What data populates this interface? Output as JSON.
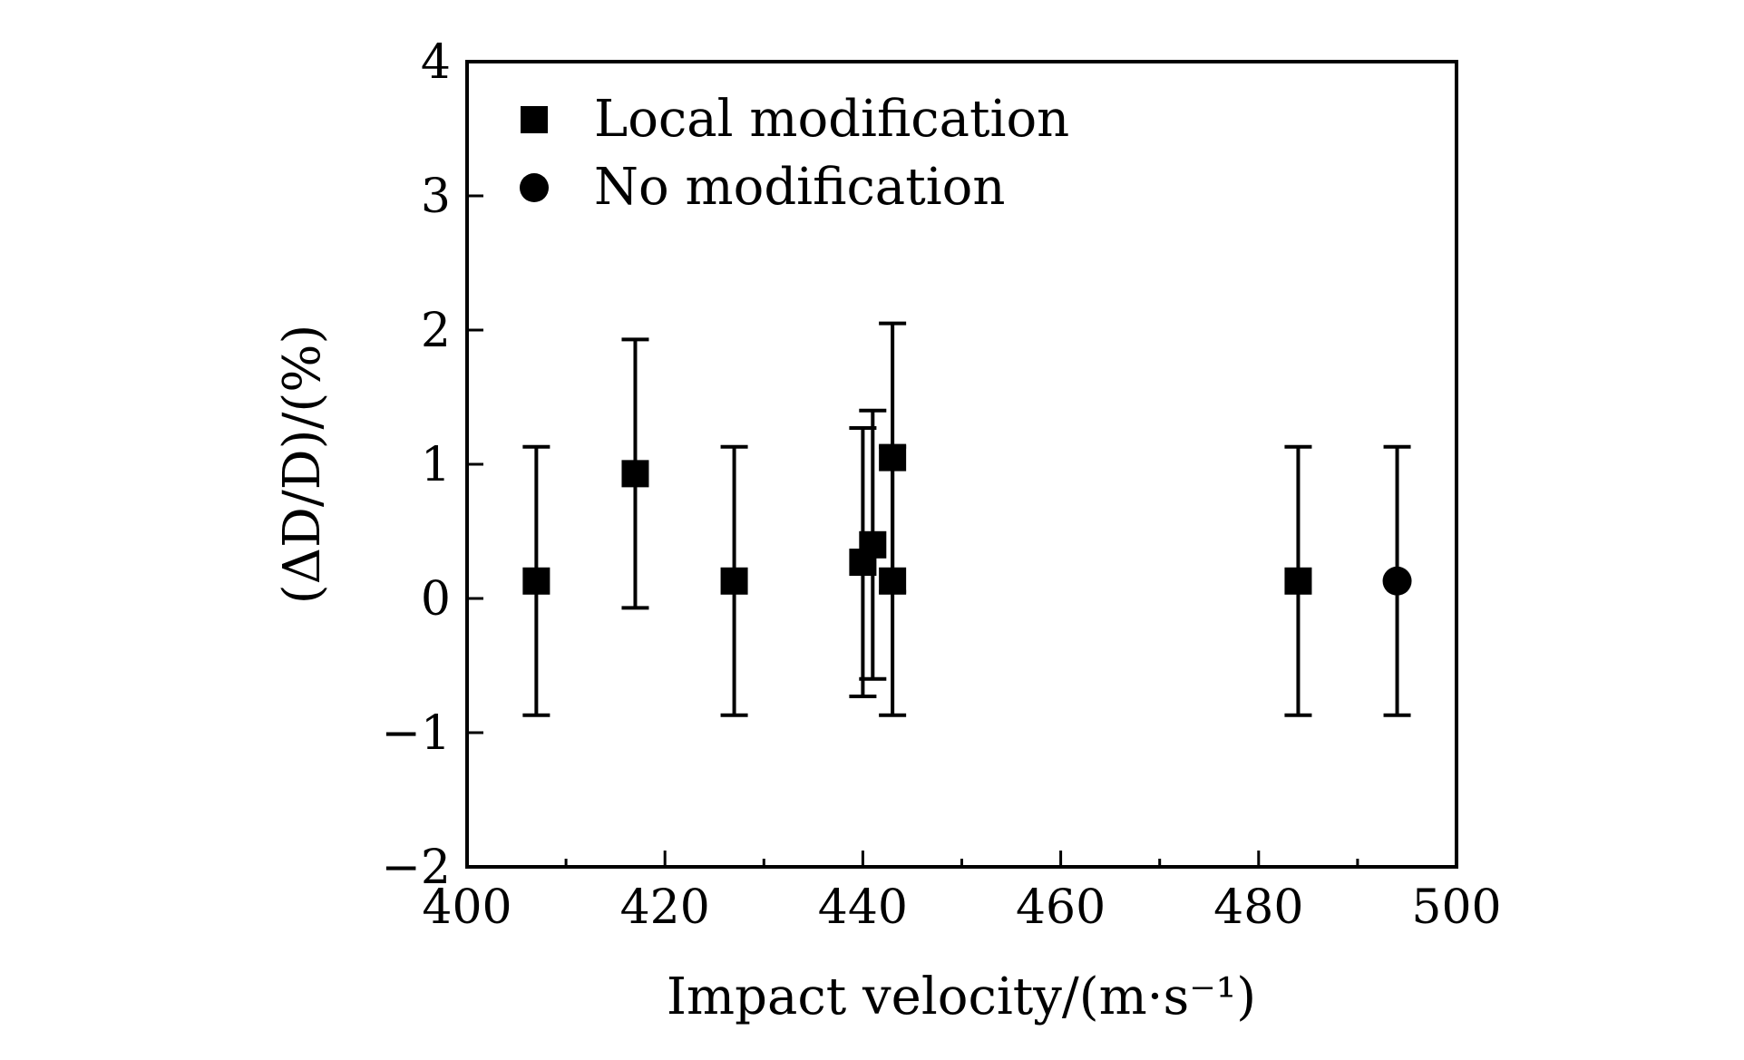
{
  "chart_data": {
    "type": "scatter",
    "xlabel": "Impact velocity/(m·s⁻¹)",
    "ylabel": "(ΔD/D)/(%)",
    "xlim": [
      400,
      500
    ],
    "ylim": [
      -2,
      4
    ],
    "x_ticks": [
      "400",
      "420",
      "440",
      "460",
      "480",
      "500"
    ],
    "y_ticks": [
      "−2",
      "−1",
      "0",
      "1",
      "2",
      "3",
      "4"
    ],
    "grid": false,
    "legend_position": "top-left",
    "series": [
      {
        "name": "Local modification",
        "marker": "square",
        "color": "#000000",
        "points": [
          {
            "x": 407,
            "y": 0.13,
            "err_low": -0.87,
            "err_high": 1.13
          },
          {
            "x": 417,
            "y": 0.93,
            "err_low": -0.07,
            "err_high": 1.93
          },
          {
            "x": 427,
            "y": 0.13,
            "err_low": -0.87,
            "err_high": 1.13
          },
          {
            "x": 440,
            "y": 0.27,
            "err_low": -0.73,
            "err_high": 1.27
          },
          {
            "x": 441,
            "y": 0.4,
            "err_low": -0.6,
            "err_high": 1.4
          },
          {
            "x": 443,
            "y": 1.05,
            "err_low": 0.05,
            "err_high": 2.05
          },
          {
            "x": 443,
            "y": 0.13,
            "err_low": -0.87,
            "err_high": 1.13
          },
          {
            "x": 484,
            "y": 0.13,
            "err_low": -0.87,
            "err_high": 1.13
          }
        ]
      },
      {
        "name": "No modification",
        "marker": "circle",
        "color": "#000000",
        "points": [
          {
            "x": 494,
            "y": 0.13,
            "err_low": -0.87,
            "err_high": 1.13
          }
        ]
      }
    ]
  }
}
